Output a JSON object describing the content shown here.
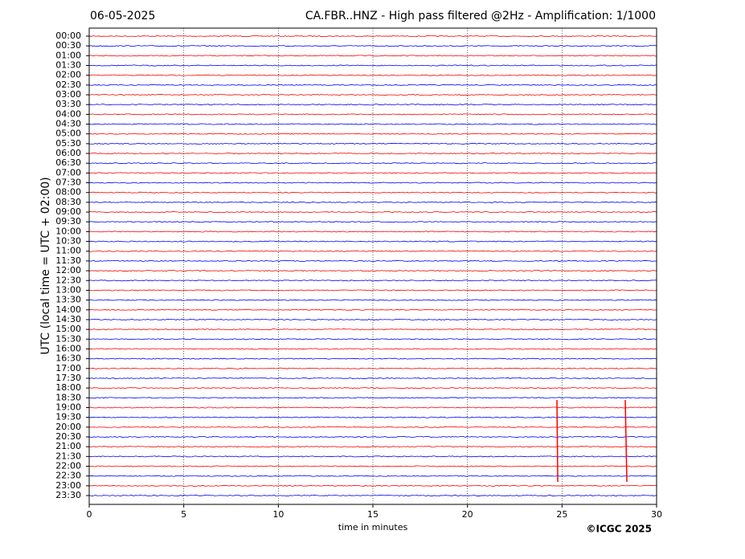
{
  "chart_data": {
    "type": "helicorder",
    "date": "06-05-2025",
    "title": "CA.FBR..HNZ - High pass filtered @2Hz - Amplification: 1/1000",
    "xlabel": "time in minutes",
    "ylabel": "UTC (local time = UTC + 02:00)",
    "categories": [
      "00:00",
      "00:30",
      "01:00",
      "01:30",
      "02:00",
      "02:30",
      "03:00",
      "03:30",
      "04:00",
      "04:30",
      "05:00",
      "05:30",
      "06:00",
      "06:30",
      "07:00",
      "07:30",
      "08:00",
      "08:30",
      "09:00",
      "09:30",
      "10:00",
      "10:30",
      "11:00",
      "11:30",
      "12:00",
      "12:30",
      "13:00",
      "13:30",
      "14:00",
      "14:30",
      "15:00",
      "15:30",
      "16:00",
      "16:30",
      "17:00",
      "17:30",
      "18:00",
      "18:30",
      "19:00",
      "19:30",
      "20:00",
      "20:30",
      "21:00",
      "21:30",
      "22:00",
      "22:30",
      "23:00",
      "23:30"
    ],
    "colors": [
      "#ff0000",
      "#0000ff"
    ],
    "xlim": [
      0,
      30
    ],
    "xticks": [
      0,
      5,
      10,
      15,
      20,
      25,
      30
    ],
    "grid": true
  },
  "copyright": "©ICGC 2025"
}
